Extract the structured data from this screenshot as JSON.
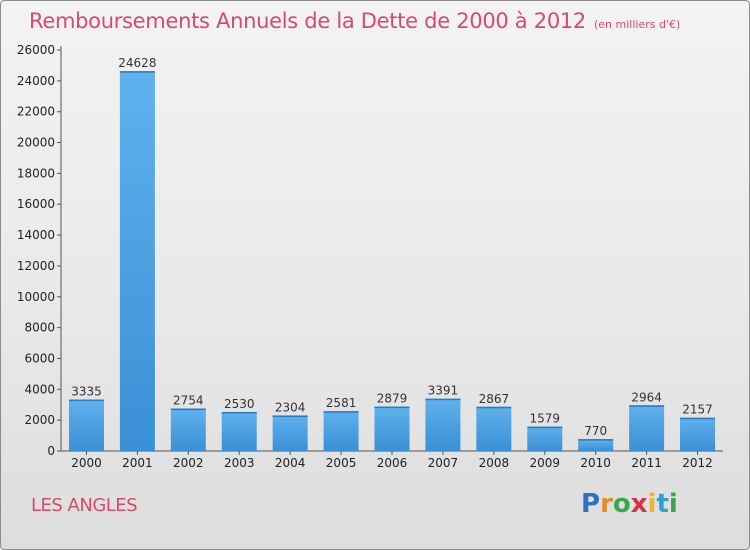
{
  "chart_data": {
    "type": "bar",
    "title": "Remboursements Annuels de la Dette de 2000 à 2012",
    "subtitle": "(en milliers d'€)",
    "categories": [
      "2000",
      "2001",
      "2002",
      "2003",
      "2004",
      "2005",
      "2006",
      "2007",
      "2008",
      "2009",
      "2010",
      "2011",
      "2012"
    ],
    "values": [
      3335,
      24628,
      2754,
      2530,
      2304,
      2581,
      2879,
      3391,
      2867,
      1579,
      770,
      2964,
      2157
    ],
    "ylim": [
      0,
      26000
    ],
    "yticks": [
      0,
      2000,
      4000,
      6000,
      8000,
      10000,
      12000,
      14000,
      16000,
      18000,
      20000,
      22000,
      24000,
      26000
    ],
    "xlabel": "",
    "ylabel": "",
    "grid": false,
    "bar_color": "#3a8fd6"
  },
  "footer": {
    "commune": "LES ANGLES",
    "brand_letters": [
      {
        "ch": "P",
        "color": "#2f6fc4"
      },
      {
        "ch": "r",
        "color": "#e8892a"
      },
      {
        "ch": "o",
        "color": "#3aa84a"
      },
      {
        "ch": "x",
        "color": "#d6324a"
      },
      {
        "ch": "i",
        "color": "#e8b82a"
      },
      {
        "ch": "t",
        "color": "#2f9fd6"
      },
      {
        "ch": "i",
        "color": "#3aa84a"
      }
    ]
  }
}
